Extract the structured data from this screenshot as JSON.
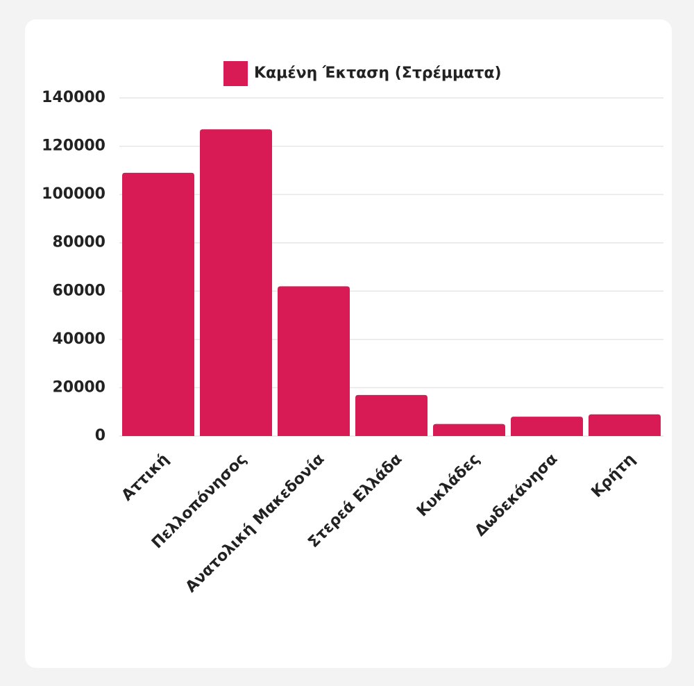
{
  "chart_data": {
    "type": "bar",
    "categories": [
      "Αττική",
      "Πελλοπόνησος",
      "Ανατολική Μακεδονία",
      "Στερεά Ελλάδα",
      "Κυκλάδες",
      "Δωδεκάνησα",
      "Κρήτη"
    ],
    "series": [
      {
        "name": "Καμένη Έκταση (Στρέμματα)",
        "color": "#d81b55",
        "values": [
          109000,
          127000,
          62000,
          17000,
          5000,
          8000,
          9000
        ]
      }
    ],
    "ylim": [
      0,
      140000
    ],
    "yticks": [
      0,
      20000,
      40000,
      60000,
      80000,
      100000,
      120000,
      140000
    ],
    "grid": true,
    "legend": "top"
  }
}
